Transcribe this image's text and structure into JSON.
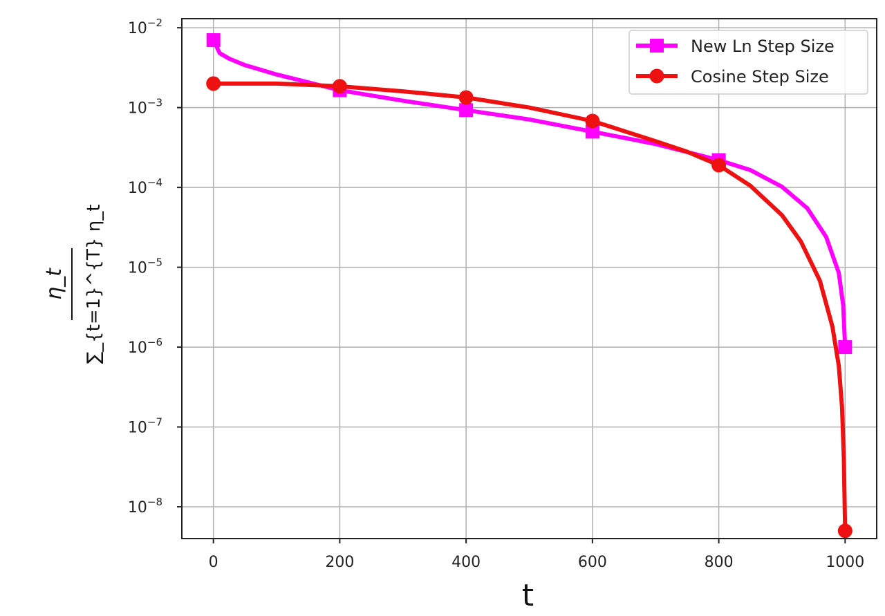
{
  "chart_data": {
    "type": "line",
    "yscale": "log",
    "xlabel": "t",
    "ylabel": {
      "numerator": "η_t",
      "denominator": "∑_{t=1}^{T} η_t"
    },
    "xlim": [
      -50,
      1050
    ],
    "ylim": [
      4e-09,
      0.013
    ],
    "xticks": [
      0,
      200,
      400,
      600,
      800,
      1000
    ],
    "xtick_labels": [
      "0",
      "200",
      "400",
      "600",
      "800",
      "1000"
    ],
    "yticks": [
      0.01,
      0.001,
      0.0001,
      1e-05,
      1e-06,
      1e-07,
      1e-08
    ],
    "ytick_exponents": [
      "−2",
      "−3",
      "−4",
      "−5",
      "−6",
      "−7",
      "−8"
    ],
    "grid": true,
    "legend_position": "top-right",
    "series": [
      {
        "name": "New Ln Step Size",
        "color": "#ff00ff",
        "marker": "square",
        "x": [
          0,
          10,
          25,
          50,
          100,
          200,
          300,
          400,
          500,
          600,
          700,
          800,
          850,
          900,
          940,
          970,
          990,
          997,
          1000
        ],
        "y": [
          0.007,
          0.0048,
          0.0041,
          0.0034,
          0.0026,
          0.00165,
          0.00122,
          0.00093,
          0.00071,
          0.0005,
          0.00035,
          0.00022,
          0.000165,
          0.000102,
          5.5e-05,
          2.4e-05,
          8.5e-06,
          3.3e-06,
          1e-06
        ],
        "markers": {
          "x": [
            0,
            200,
            400,
            600,
            800,
            1000
          ],
          "y": [
            0.007,
            0.00165,
            0.00093,
            0.0005,
            0.00022,
            1e-06
          ]
        }
      },
      {
        "name": "Cosine Step Size",
        "color": "#ee1111",
        "marker": "circle",
        "x": [
          0,
          100,
          200,
          300,
          400,
          500,
          600,
          700,
          750,
          800,
          850,
          900,
          930,
          960,
          980,
          990,
          995,
          998,
          1000
        ],
        "y": [
          0.002,
          0.002,
          0.00185,
          0.0016,
          0.00134,
          0.001,
          0.00068,
          0.00038,
          0.00028,
          0.00019,
          0.000105,
          4.5e-05,
          2.1e-05,
          6.8e-06,
          1.8e-06,
          5.8e-07,
          1.8e-07,
          4e-08,
          5e-09
        ],
        "markers": {
          "x": [
            0,
            200,
            400,
            600,
            800,
            1000
          ],
          "y": [
            0.002,
            0.00185,
            0.00134,
            0.00068,
            0.00019,
            5e-09
          ]
        }
      }
    ]
  }
}
